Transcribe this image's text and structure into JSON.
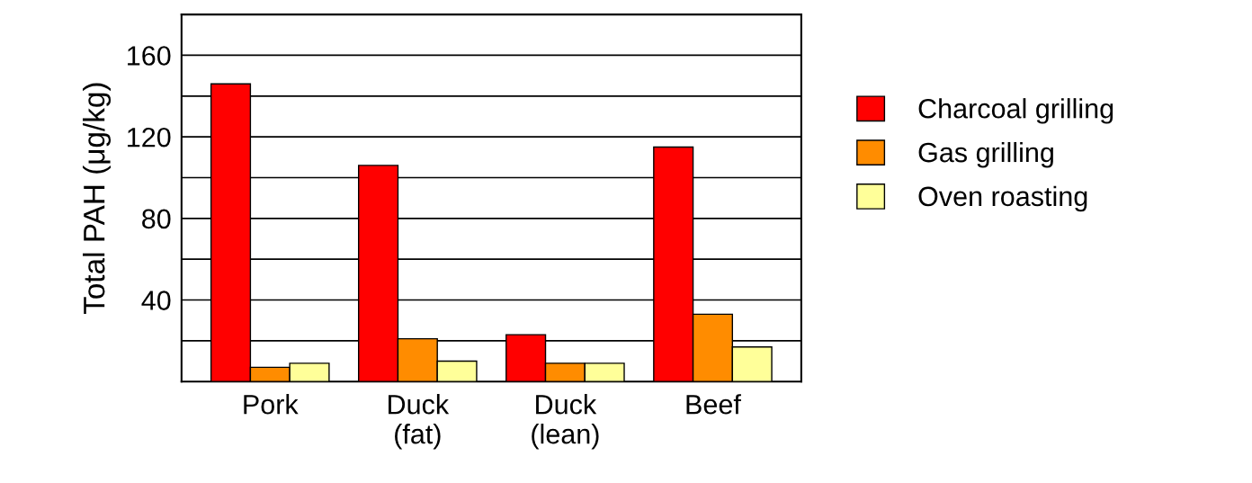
{
  "chart_data": {
    "type": "bar",
    "ylabel": "Total PAH (μg/kg)",
    "categories": [
      "Pork",
      "Duck\n(fat)",
      "Duck\n(lean)",
      "Beef"
    ],
    "series": [
      {
        "name": "Charcoal grilling",
        "color": "#ff0000",
        "values": [
          146,
          106,
          23,
          115
        ]
      },
      {
        "name": "Gas grilling",
        "color": "#ff8c00",
        "values": [
          7,
          21,
          9,
          33
        ]
      },
      {
        "name": "Oven roasting",
        "color": "#ffff99",
        "values": [
          9,
          10,
          9,
          17
        ]
      }
    ],
    "ylim": [
      0,
      180
    ],
    "yticks": [
      {
        "value": 20,
        "label": null
      },
      40,
      {
        "value": 60,
        "label": null
      },
      80,
      {
        "value": 100,
        "label": null
      },
      120,
      {
        "value": 140,
        "label": null
      },
      160,
      {
        "value": 180,
        "label": null
      }
    ],
    "grid": "y",
    "legend": "right"
  }
}
